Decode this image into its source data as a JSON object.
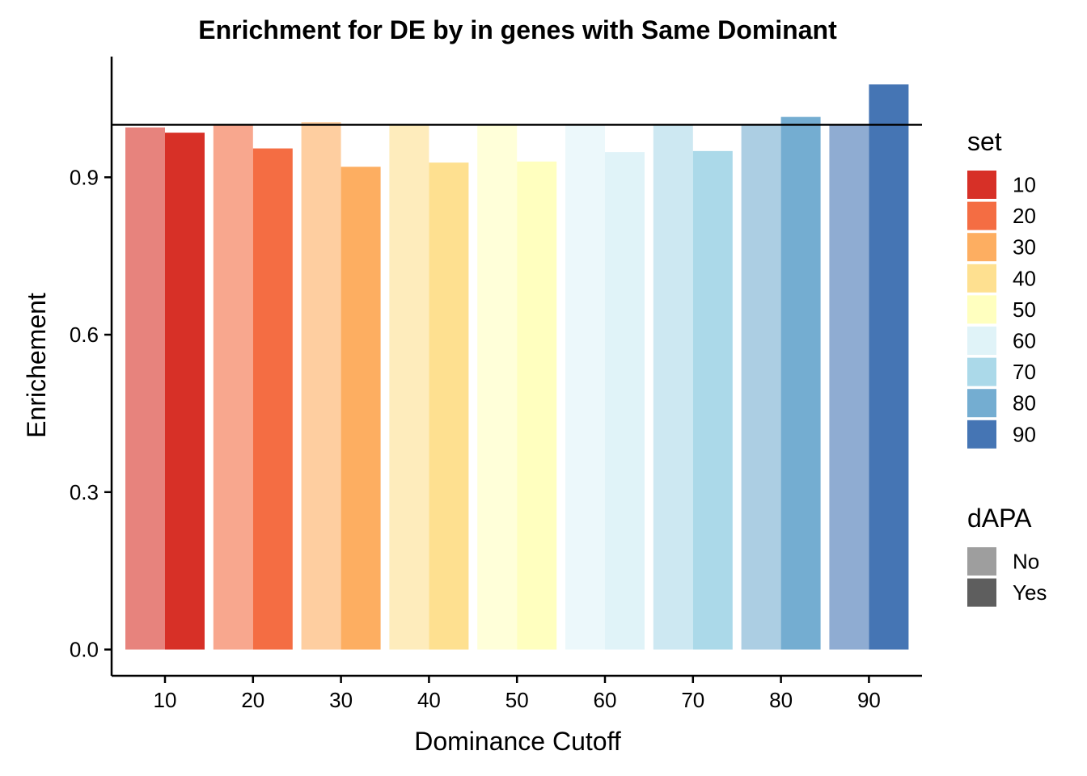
{
  "chart_data": {
    "type": "bar",
    "title": "Enrichment for DE by in genes with Same Dominant",
    "xlabel": "Dominance Cutoff",
    "ylabel": "Enrichement",
    "categories": [
      "10",
      "20",
      "30",
      "40",
      "50",
      "60",
      "70",
      "80",
      "90"
    ],
    "series": [
      {
        "name": "No",
        "values": [
          0.995,
          1.0,
          1.005,
          1.0,
          1.0,
          1.0,
          1.0,
          1.0,
          1.0
        ]
      },
      {
        "name": "Yes",
        "values": [
          0.985,
          0.955,
          0.92,
          0.928,
          0.93,
          0.948,
          0.95,
          1.015,
          1.077
        ]
      }
    ],
    "y_ticks": [
      "0.0",
      "0.3",
      "0.6",
      "0.9"
    ],
    "y_tick_values": [
      0,
      0.3,
      0.6,
      0.9
    ],
    "ylim": [
      -0.05,
      1.13
    ],
    "reference_line": 1.0,
    "legend_set": {
      "title": "set",
      "items": [
        {
          "label": "10",
          "color": "#D73027"
        },
        {
          "label": "20",
          "color": "#F46D43"
        },
        {
          "label": "30",
          "color": "#FDAE61"
        },
        {
          "label": "40",
          "color": "#FEE090"
        },
        {
          "label": "50",
          "color": "#FFFFBF"
        },
        {
          "label": "60",
          "color": "#E0F3F8"
        },
        {
          "label": "70",
          "color": "#ABD9E9"
        },
        {
          "label": "80",
          "color": "#74ADD1"
        },
        {
          "label": "90",
          "color": "#4575B4"
        }
      ]
    },
    "legend_dapa": {
      "title": "dAPA",
      "items": [
        {
          "label": "No",
          "color": "#9E9E9E"
        },
        {
          "label": "Yes",
          "color": "#5E5E5E"
        }
      ]
    },
    "no_alpha": 0.6,
    "grid": false,
    "legend_position": "right"
  }
}
